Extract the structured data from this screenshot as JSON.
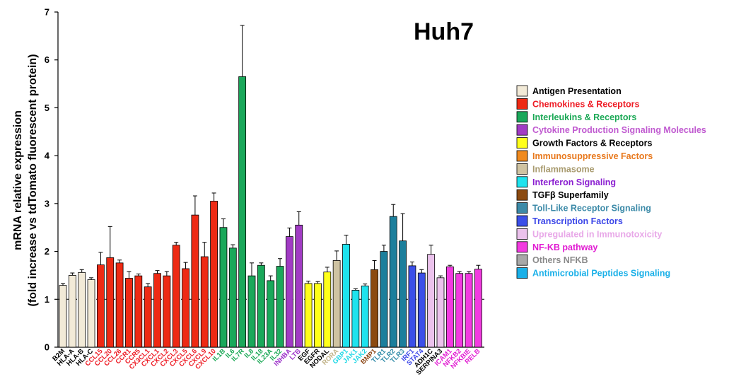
{
  "chart_data": {
    "type": "bar",
    "title": "Huh7",
    "ylabel": [
      "mRNA relative expression",
      "(fold increase vs tdTomato fluorescent protein)"
    ],
    "xlabel": "",
    "ylim": [
      0,
      7
    ],
    "yticks": [
      "0",
      "1",
      "2",
      "3",
      "4",
      "5",
      "6",
      "7"
    ],
    "reference_line": 1,
    "grid": false,
    "legend_position": "right",
    "categories": [
      "B2M",
      "HLA-A",
      "HLA-B",
      "HLA-C",
      "CCL15",
      "CCL20",
      "CCL26",
      "CCR1",
      "CCR5",
      "CX3CL1",
      "CXCL1",
      "CXCL2",
      "CXCL3",
      "CXCL5",
      "CXCL6",
      "CXCL9",
      "CXCL10",
      "IL1B",
      "IL6",
      "IL7R",
      "IL8",
      "IL18",
      "IL23A",
      "IL32",
      "INHBA",
      "LTB",
      "EGF",
      "EGFR",
      "NODAL",
      "RORA",
      "GBP1",
      "JAK1",
      "JAK2",
      "BMP1",
      "TLR1",
      "TLR2",
      "TLR3",
      "IRF1",
      "STAT4",
      "ADH1C",
      "SERPINA3",
      "ICAM1",
      "NFKB2",
      "NFKBIE",
      "RELB"
    ],
    "tick_colors": [
      "#000000",
      "#000000",
      "#000000",
      "#000000",
      "#ee1c25",
      "#ee1c25",
      "#ee1c25",
      "#ee1c25",
      "#ee1c25",
      "#ee1c25",
      "#ee1c25",
      "#ee1c25",
      "#ee1c25",
      "#ee1c25",
      "#ee1c25",
      "#ee1c25",
      "#ee1c25",
      "#1aa855",
      "#1aa855",
      "#1aa855",
      "#1aa855",
      "#1aa855",
      "#1aa855",
      "#1aa855",
      "#9b30c8",
      "#9b30c8",
      "#000000",
      "#000000",
      "#000000",
      "#c2b48a",
      "#22d8e6",
      "#22d8e6",
      "#22d8e6",
      "#8b4513",
      "#2e8aa8",
      "#2e8aa8",
      "#2e8aa8",
      "#3b46e8",
      "#3b46e8",
      "#000000",
      "#000000",
      "#e11bd2",
      "#e11bd2",
      "#e11bd2",
      "#e11bd2"
    ],
    "bar_colors": [
      "#f2ead7",
      "#f2ead7",
      "#f2ead7",
      "#f2ead7",
      "#ee2a14",
      "#ee2a14",
      "#ee2a14",
      "#ee2a14",
      "#ee2a14",
      "#ee2a14",
      "#ee2a14",
      "#ee2a14",
      "#ee2a14",
      "#ee2a14",
      "#ee2a14",
      "#ee2a14",
      "#ee2a14",
      "#1aa85a",
      "#1aa85a",
      "#1aa85a",
      "#1aa85a",
      "#1aa85a",
      "#1aa85a",
      "#1aa85a",
      "#a13bc4",
      "#a13bc4",
      "#ffff1a",
      "#ffff1a",
      "#ffff1a",
      "#cfc3a2",
      "#1ee3ee",
      "#1ee3ee",
      "#1ee3ee",
      "#8b4a10",
      "#1c7f9c",
      "#1c7f9c",
      "#1c7f9c",
      "#3b4fe8",
      "#3b4fe8",
      "#ebc2ec",
      "#ebc2ec",
      "#f23be0",
      "#f23be0",
      "#f23be0",
      "#f23be0"
    ],
    "values": [
      1.29,
      1.5,
      1.56,
      1.41,
      1.72,
      1.87,
      1.76,
      1.44,
      1.49,
      1.26,
      1.54,
      1.49,
      2.13,
      1.64,
      2.76,
      1.89,
      3.05,
      2.5,
      2.07,
      5.65,
      1.49,
      1.71,
      1.39,
      1.69,
      2.31,
      2.55,
      1.33,
      1.33,
      1.57,
      1.81,
      2.15,
      1.19,
      1.28,
      1.62,
      2.0,
      2.73,
      2.22,
      1.7,
      1.55,
      1.94,
      1.45,
      1.68,
      1.54,
      1.54,
      1.63
    ],
    "errors": [
      0.04,
      0.05,
      0.06,
      0.04,
      0.26,
      0.65,
      0.06,
      0.14,
      0.04,
      0.07,
      0.06,
      0.09,
      0.06,
      0.13,
      0.4,
      0.3,
      0.17,
      0.18,
      0.07,
      1.07,
      0.27,
      0.05,
      0.1,
      0.16,
      0.18,
      0.28,
      0.05,
      0.04,
      0.1,
      0.2,
      0.19,
      0.03,
      0.04,
      0.19,
      0.13,
      0.25,
      0.57,
      0.08,
      0.07,
      0.19,
      0.04,
      0.03,
      0.04,
      0.04,
      0.08
    ],
    "legend": [
      {
        "label": "Antigen Presentation",
        "color": "#f2ead7",
        "text_color": "#000000"
      },
      {
        "label": "Chemokines & Receptors",
        "color": "#ee2a14",
        "text_color": "#ee1c25"
      },
      {
        "label": "Interleukins & Receptors",
        "color": "#1aa85a",
        "text_color": "#1aa855"
      },
      {
        "label": "Cytokine Production Signaling Molecules",
        "color": "#a13bc4",
        "text_color": "#c05ad0"
      },
      {
        "label": "Growth Factors & Receptors",
        "color": "#ffff1a",
        "text_color": "#000000"
      },
      {
        "label": "Immunosuppressive Factors",
        "color": "#f08a1e",
        "text_color": "#e8781c"
      },
      {
        "label": "Inflammasome",
        "color": "#cfc3a2",
        "text_color": "#a89a6e"
      },
      {
        "label": "Interferon Signaling",
        "color": "#1ee3ee",
        "text_color": "#8a1ed0"
      },
      {
        "label": "TGFβ Superfamily",
        "color": "#8b4a10",
        "text_color": "#000000"
      },
      {
        "label": "Toll-Like Receptor Signaling",
        "color": "#3c8aa8",
        "text_color": "#3c8aa8"
      },
      {
        "label": "Transcription Factors",
        "color": "#3b4fe8",
        "text_color": "#3b46e8"
      },
      {
        "label": "Upregulated in Immunotoxicity",
        "color": "#ebc2ec",
        "text_color": "#e8a8e8"
      },
      {
        "label": "NF-KB pathway",
        "color": "#f23be0",
        "text_color": "#e11bd2"
      },
      {
        "label": "Others NFKB",
        "color": "#a8a8a8",
        "text_color": "#8a8a8a"
      },
      {
        "label": "Antimicrobial Peptides Signaling",
        "color": "#1ab0e8",
        "text_color": "#1ab0e8"
      }
    ]
  }
}
